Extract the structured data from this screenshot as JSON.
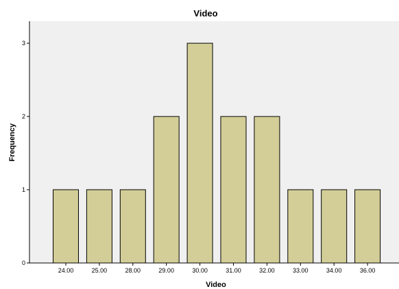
{
  "chart_data": {
    "type": "bar",
    "title": "Video",
    "xlabel": "Video",
    "ylabel": "Frequency",
    "categories": [
      "24.00",
      "25.00",
      "28.00",
      "29.00",
      "30.00",
      "31.00",
      "32.00",
      "33.00",
      "34.00",
      "36.00"
    ],
    "values": [
      1,
      1,
      1,
      2,
      3,
      2,
      2,
      1,
      1,
      1
    ],
    "ylim": [
      0,
      3.3
    ],
    "yticks": [
      "0",
      "1",
      "2",
      "3"
    ],
    "grid": false,
    "colors": {
      "plot_background": "#f0f0f0",
      "bar_fill": "#d3ce97",
      "bar_stroke": "#000000"
    }
  }
}
